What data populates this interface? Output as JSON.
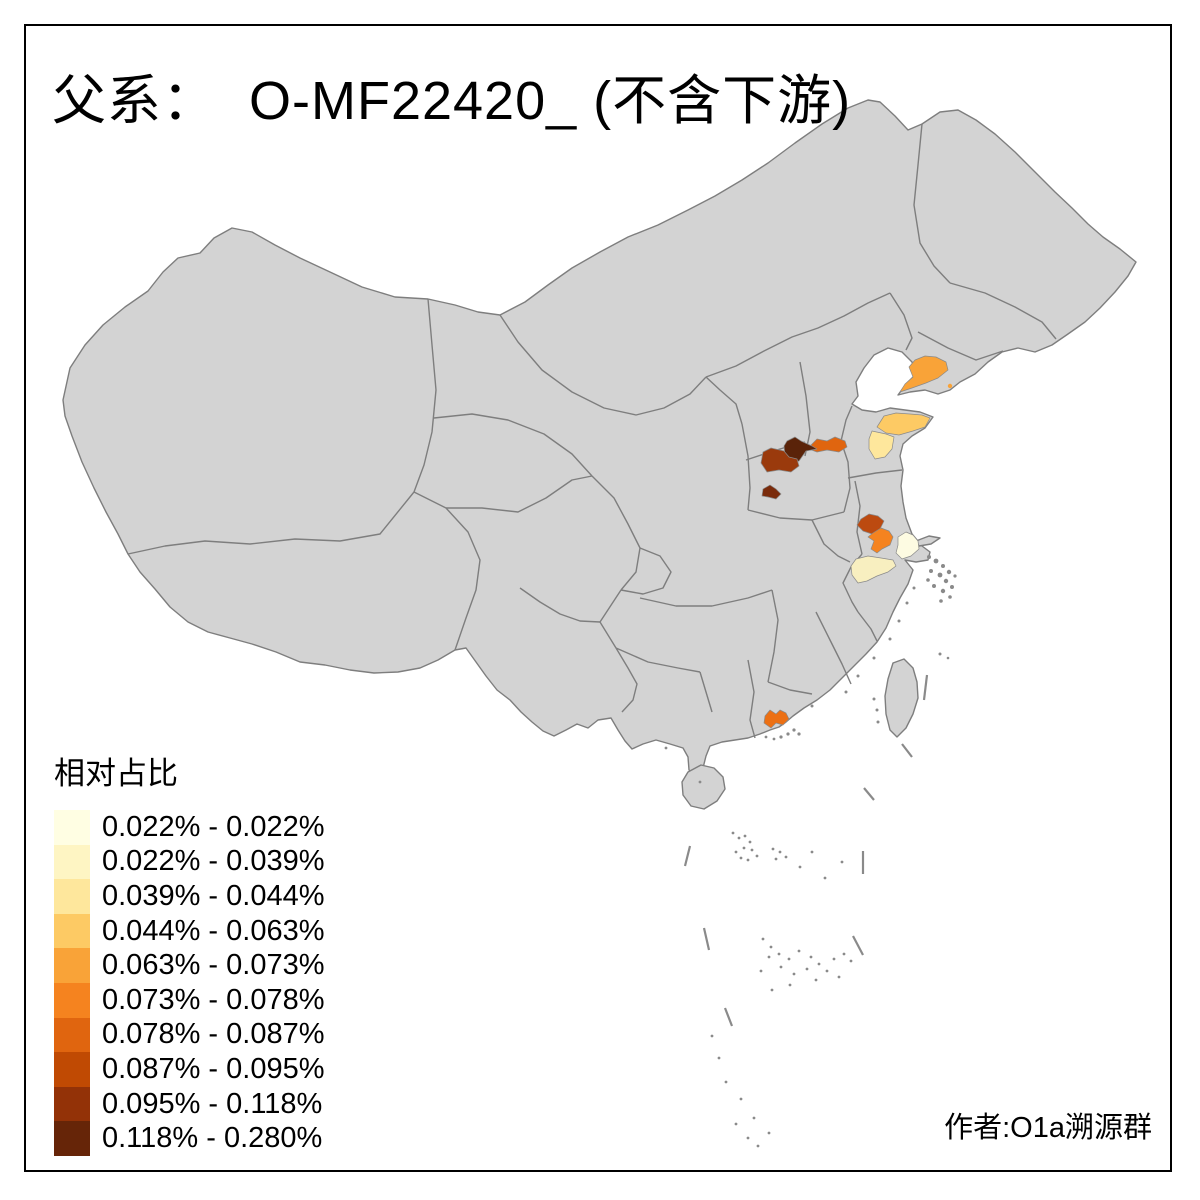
{
  "figure": {
    "title": "父系：  O-MF22420_ (不含下游)",
    "attribution": "作者:O1a溯源群"
  },
  "legend": {
    "title": "相对占比",
    "classes": [
      {
        "label": "0.022% - 0.022%",
        "color": "#fffee3"
      },
      {
        "label": "0.022% - 0.039%",
        "color": "#fef5c3"
      },
      {
        "label": "0.039% - 0.044%",
        "color": "#fee79c"
      },
      {
        "label": "0.044% - 0.063%",
        "color": "#fdca64"
      },
      {
        "label": "0.063% - 0.073%",
        "color": "#f9a338"
      },
      {
        "label": "0.073% - 0.078%",
        "color": "#f5831f"
      },
      {
        "label": "0.078% - 0.087%",
        "color": "#e0650f"
      },
      {
        "label": "0.087% - 0.095%",
        "color": "#c04a03"
      },
      {
        "label": "0.095% - 0.118%",
        "color": "#933207"
      },
      {
        "label": "0.118% - 0.280%",
        "color": "#662508"
      }
    ]
  },
  "map": {
    "land_color": "#d3d3d3",
    "border_color": "#7e7e7e",
    "sea_color": "#ffffff",
    "frame_color": "#000000",
    "regions": [
      {
        "id": "liaodong-peninsula",
        "color": "#f9a338",
        "legend_range": "0.063% - 0.073%"
      },
      {
        "id": "shandong-northeast",
        "color": "#fdca64",
        "legend_range": "0.044% - 0.063%"
      },
      {
        "id": "shandong-east-pale",
        "color": "#fee79c",
        "legend_range": "0.039% - 0.044%"
      },
      {
        "id": "henan-east-orange",
        "color": "#e0650f",
        "legend_range": "0.078% - 0.087%"
      },
      {
        "id": "henan-center-darkest",
        "color": "#5a2309",
        "legend_range": "0.118% - 0.280%"
      },
      {
        "id": "henan-west-brown",
        "color": "#9a3a0c",
        "legend_range": "0.095% - 0.118%"
      },
      {
        "id": "henan-south-small",
        "color": "#7a2b0b",
        "legend_range": "0.118% - 0.280%"
      },
      {
        "id": "jiangsu-central-brown",
        "color": "#bc4a10",
        "legend_range": "0.087% - 0.095%"
      },
      {
        "id": "jiangsu-south-orange",
        "color": "#f5831f",
        "legend_range": "0.073% - 0.078%"
      },
      {
        "id": "shanghai-west-cream",
        "color": "#fdfbe2",
        "legend_range": "0.022% - 0.022%"
      },
      {
        "id": "zhejiang-north-paleyellow",
        "color": "#f8efc0",
        "legend_range": "0.022% - 0.039%"
      },
      {
        "id": "guangdong-pearl-delta",
        "color": "#ec7014",
        "legend_range": "0.078% - 0.087%"
      }
    ]
  }
}
